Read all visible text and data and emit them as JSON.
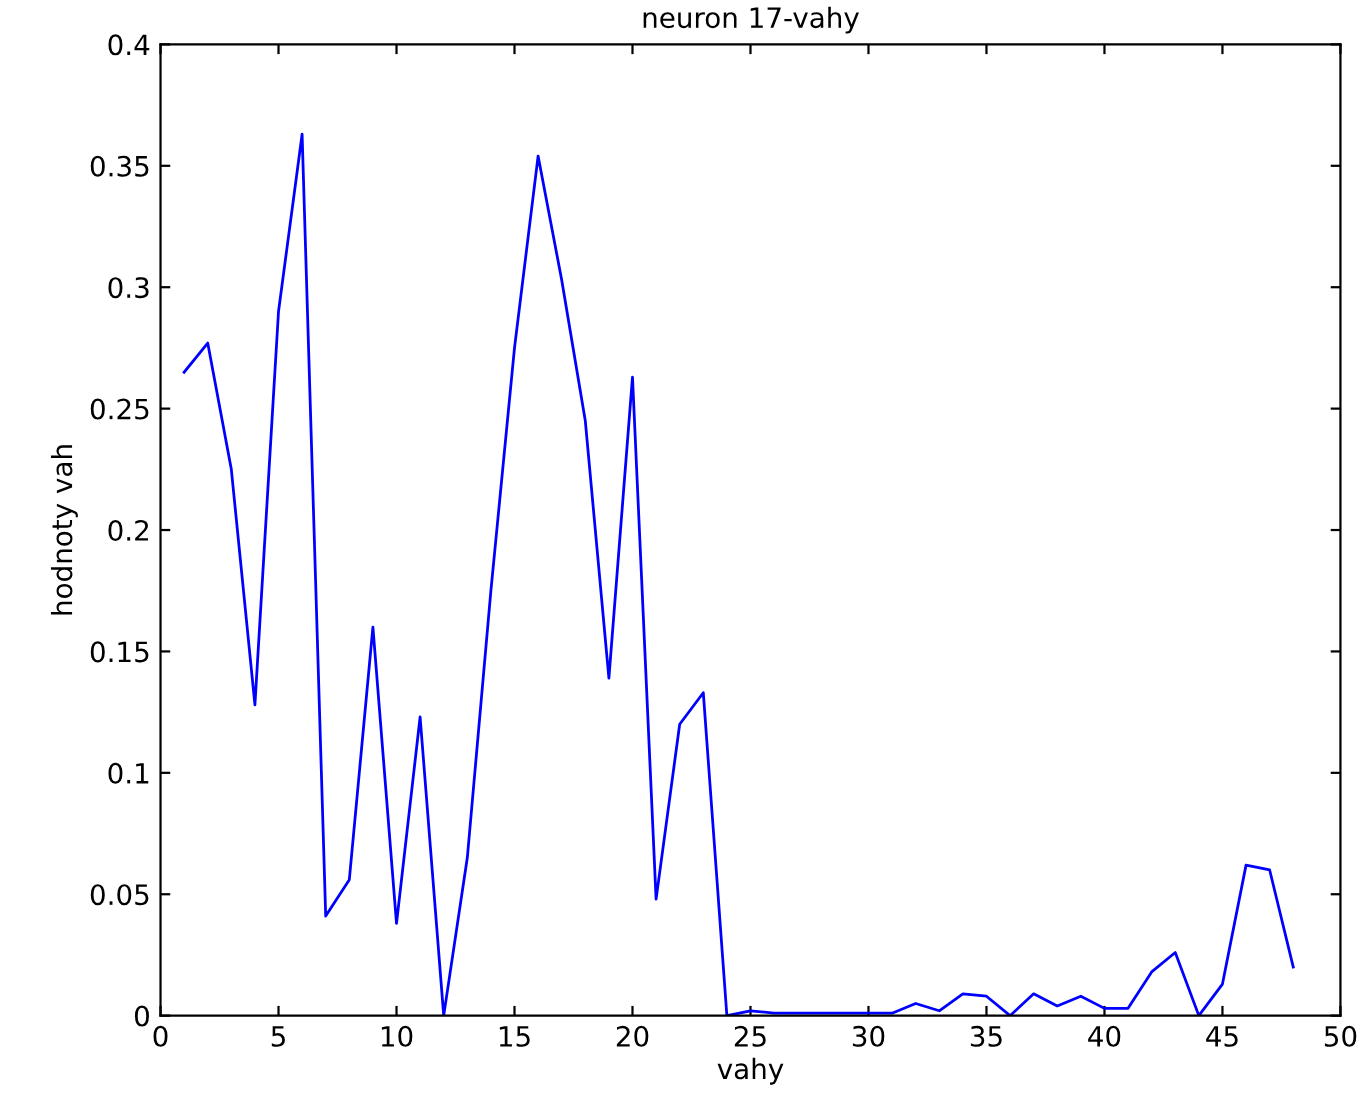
{
  "chart_data": {
    "type": "line",
    "title": "neuron 17-vahy",
    "xlabel": "vahy",
    "ylabel": "hodnoty vah",
    "x": [
      1,
      2,
      3,
      4,
      5,
      6,
      7,
      8,
      9,
      10,
      11,
      12,
      13,
      14,
      15,
      16,
      17,
      18,
      19,
      20,
      21,
      22,
      23,
      24,
      25,
      26,
      27,
      28,
      29,
      30,
      31,
      32,
      33,
      34,
      35,
      36,
      37,
      38,
      39,
      40,
      41,
      42,
      43,
      44,
      45,
      46,
      47,
      48
    ],
    "series": [
      {
        "color": "#0000ff",
        "values": [
          0.265,
          0.277,
          0.225,
          0.128,
          0.29,
          0.363,
          0.041,
          0.056,
          0.16,
          0.038,
          0.123,
          0.0,
          0.065,
          0.175,
          0.275,
          0.354,
          0.303,
          0.245,
          0.139,
          0.263,
          0.048,
          0.12,
          0.133,
          0.0,
          0.002,
          0.001,
          0.001,
          0.001,
          0.001,
          0.001,
          0.001,
          0.005,
          0.002,
          0.009,
          0.008,
          0.0,
          0.009,
          0.004,
          0.008,
          0.003,
          0.003,
          0.018,
          0.026,
          0.0,
          0.013,
          0.062,
          0.06,
          0.02
        ]
      }
    ],
    "xlim": [
      0,
      50
    ],
    "xticks": [
      0,
      5,
      10,
      15,
      20,
      25,
      30,
      35,
      40,
      45,
      50
    ],
    "ylim": [
      0,
      0.4
    ],
    "yticks": [
      0,
      0.05,
      0.1,
      0.15,
      0.2,
      0.25,
      0.3,
      0.35,
      0.4
    ],
    "grid": false,
    "legend": false,
    "marker": "none",
    "line_style": "solid"
  }
}
